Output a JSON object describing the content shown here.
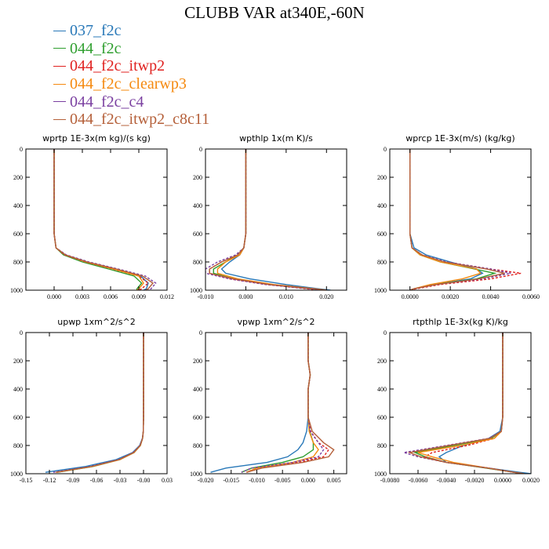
{
  "title": "CLUBB VAR at340E,-60N",
  "legend": {
    "items": [
      {
        "label": "037_f2c",
        "color": "#2878b8"
      },
      {
        "label": "044_f2c",
        "color": "#2e9e2e"
      },
      {
        "label": "044_f2c_itwp2",
        "color": "#e0211f"
      },
      {
        "label": "044_f2c_clearwp3",
        "color": "#f5890e"
      },
      {
        "label": "044_f2c_c4",
        "color": "#7a3fa0"
      },
      {
        "label": "044_f2c_itwp2_c8c11",
        "color": "#b5603a"
      }
    ]
  },
  "chart_data": [
    {
      "type": "line",
      "title": "wprtp  1E-3x(m kg)/(s kg)",
      "xlim": [
        -0.003,
        0.012
      ],
      "ylim": [
        1000,
        0
      ],
      "xticks": [
        0.0,
        0.003,
        0.006,
        0.009,
        0.012
      ],
      "xtick_labels": [
        "0.000",
        "0.003",
        "0.006",
        "0.009",
        "0.012"
      ],
      "yticks": [
        0,
        200,
        400,
        600,
        800,
        1000
      ],
      "y_levels": [
        0,
        200,
        400,
        600,
        700,
        750,
        800,
        850,
        900,
        950,
        990,
        1000
      ],
      "series": [
        {
          "legend": "037_f2c",
          "dashed": false,
          "x": [
            0,
            0,
            0,
            0,
            0.0002,
            0.0012,
            0.0035,
            0.0065,
            0.0092,
            0.01,
            0.0098,
            0.0095
          ]
        },
        {
          "legend": "044_f2c",
          "dashed": false,
          "x": [
            0,
            0,
            0,
            0,
            0.0002,
            0.001,
            0.003,
            0.0058,
            0.0085,
            0.0093,
            0.0088,
            0.0088
          ]
        },
        {
          "legend": "044_f2c_itwp2",
          "dashed": true,
          "x": [
            0,
            0,
            0,
            0,
            0.0002,
            0.0011,
            0.0033,
            0.0062,
            0.009,
            0.01,
            0.0093,
            0.009
          ]
        },
        {
          "legend": "044_f2c_clearwp3",
          "dashed": false,
          "x": [
            0,
            0,
            0,
            0,
            0.0002,
            0.0012,
            0.0034,
            0.0063,
            0.009,
            0.0095,
            0.009,
            0.0088
          ]
        },
        {
          "legend": "044_f2c_c4",
          "dashed": true,
          "x": [
            0,
            0,
            0,
            0,
            0.0002,
            0.0013,
            0.0037,
            0.0068,
            0.0097,
            0.0108,
            0.0103,
            0.01
          ]
        },
        {
          "legend": "044_f2c_itwp2_c8c11",
          "dashed": false,
          "x": [
            0,
            0,
            0,
            0,
            0.0002,
            0.0012,
            0.0035,
            0.0066,
            0.0094,
            0.0105,
            0.01,
            0.0097
          ]
        }
      ]
    },
    {
      "type": "line",
      "title": "wpthlp  1x(m K)/s",
      "xlim": [
        -0.01,
        0.025
      ],
      "ylim": [
        1000,
        0
      ],
      "xticks": [
        -0.01,
        0.0,
        0.01,
        0.02
      ],
      "xtick_labels": [
        "-0.010",
        "0.000",
        "0.010",
        "0.020"
      ],
      "yticks": [
        0,
        200,
        400,
        600,
        800,
        1000
      ],
      "y_levels": [
        0,
        200,
        400,
        600,
        700,
        750,
        800,
        850,
        880,
        920,
        960,
        990,
        1000
      ],
      "series": [
        {
          "legend": "037_f2c",
          "dashed": false,
          "x": [
            0,
            0,
            0,
            0,
            -0.0005,
            -0.0015,
            -0.004,
            -0.006,
            -0.005,
            0.001,
            0.01,
            0.018,
            0.021
          ]
        },
        {
          "legend": "044_f2c",
          "dashed": false,
          "x": [
            0,
            0,
            0,
            0,
            -0.0005,
            -0.002,
            -0.005,
            -0.008,
            -0.008,
            -0.003,
            0.006,
            0.016,
            0.02
          ]
        },
        {
          "legend": "044_f2c_itwp2",
          "dashed": true,
          "x": [
            0,
            0,
            0,
            0,
            -0.0005,
            -0.002,
            -0.006,
            -0.009,
            -0.009,
            -0.004,
            0.005,
            0.015,
            0.019
          ]
        },
        {
          "legend": "044_f2c_clearwp3",
          "dashed": false,
          "x": [
            0,
            0,
            0,
            0,
            -0.0005,
            -0.0015,
            -0.005,
            -0.007,
            -0.007,
            -0.002,
            0.007,
            0.017,
            0.02
          ]
        },
        {
          "legend": "044_f2c_c4",
          "dashed": true,
          "x": [
            0,
            0,
            0,
            0,
            -0.0005,
            -0.0025,
            -0.007,
            -0.01,
            -0.01,
            -0.004,
            0.005,
            0.016,
            0.02
          ]
        },
        {
          "legend": "044_f2c_itwp2_c8c11",
          "dashed": false,
          "x": [
            0,
            0,
            0,
            0,
            -0.0005,
            -0.002,
            -0.006,
            -0.009,
            -0.009,
            -0.003,
            0.006,
            0.017,
            0.02
          ]
        }
      ]
    },
    {
      "type": "line",
      "title": "wprcp  1E-3x(m/s) (kg/kg)",
      "xlim": [
        -0.001,
        0.006
      ],
      "ylim": [
        1000,
        0
      ],
      "xticks": [
        0.0,
        0.002,
        0.004,
        0.006
      ],
      "xtick_labels": [
        "0.0000",
        "0.0020",
        "0.0040",
        "0.0060"
      ],
      "yticks": [
        0,
        200,
        400,
        600,
        800,
        1000
      ],
      "y_levels": [
        0,
        200,
        400,
        600,
        700,
        750,
        800,
        850,
        880,
        920,
        960,
        990,
        1000
      ],
      "series": [
        {
          "legend": "037_f2c",
          "dashed": false,
          "x": [
            0,
            0,
            0,
            0,
            0.0002,
            0.0008,
            0.002,
            0.0033,
            0.0036,
            0.003,
            0.0012,
            0.0002,
            0
          ]
        },
        {
          "legend": "044_f2c",
          "dashed": false,
          "x": [
            0,
            0,
            0,
            0,
            0.0001,
            0.0005,
            0.0015,
            0.0032,
            0.0042,
            0.0033,
            0.0012,
            0.0002,
            0
          ]
        },
        {
          "legend": "044_f2c_itwp2",
          "dashed": true,
          "x": [
            0,
            0,
            0,
            0,
            0.0001,
            0.0006,
            0.0018,
            0.004,
            0.0055,
            0.004,
            0.0015,
            0.0003,
            0
          ]
        },
        {
          "legend": "044_f2c_clearwp3",
          "dashed": false,
          "x": [
            0,
            0,
            0,
            0,
            0.0001,
            0.0005,
            0.0015,
            0.0033,
            0.0035,
            0.0026,
            0.001,
            0.0002,
            0
          ]
        },
        {
          "legend": "044_f2c_c4",
          "dashed": true,
          "x": [
            0,
            0,
            0,
            0,
            0.0001,
            0.0006,
            0.0018,
            0.004,
            0.005,
            0.0036,
            0.0013,
            0.0002,
            0
          ]
        },
        {
          "legend": "044_f2c_itwp2_c8c11",
          "dashed": false,
          "x": [
            0,
            0,
            0,
            0,
            0.0001,
            0.0006,
            0.0017,
            0.0038,
            0.0047,
            0.0034,
            0.0013,
            0.0002,
            0
          ]
        }
      ]
    },
    {
      "type": "line",
      "title": "upwp  1xm^2/s^2",
      "xlim": [
        -0.15,
        0.03
      ],
      "ylim": [
        1000,
        0
      ],
      "xticks": [
        -0.15,
        -0.12,
        -0.09,
        -0.06,
        -0.03,
        0.0,
        0.03
      ],
      "xtick_labels": [
        "-0.15",
        "-0.12",
        "-0.09",
        "-0.06",
        "-0.03",
        "-0.00",
        "0.03"
      ],
      "yticks": [
        0,
        200,
        400,
        600,
        800,
        1000
      ],
      "y_levels": [
        0,
        200,
        400,
        600,
        700,
        750,
        800,
        850,
        900,
        950,
        990
      ],
      "series": [
        {
          "legend": "037_f2c",
          "dashed": false,
          "x": [
            0,
            0,
            0,
            0,
            -0.0003,
            -0.0015,
            -0.005,
            -0.014,
            -0.035,
            -0.075,
            -0.125
          ]
        },
        {
          "legend": "044_f2c",
          "dashed": false,
          "x": [
            0,
            0,
            0,
            0,
            -0.0003,
            -0.0012,
            -0.004,
            -0.012,
            -0.03,
            -0.065,
            -0.11
          ]
        },
        {
          "legend": "044_f2c_itwp2",
          "dashed": true,
          "x": [
            0,
            0,
            0,
            0,
            -0.0003,
            -0.0012,
            -0.0045,
            -0.013,
            -0.031,
            -0.067,
            -0.112
          ]
        },
        {
          "legend": "044_f2c_clearwp3",
          "dashed": false,
          "x": [
            0,
            0,
            0,
            0,
            -0.0003,
            -0.0012,
            -0.004,
            -0.012,
            -0.03,
            -0.066,
            -0.111
          ]
        },
        {
          "legend": "044_f2c_c4",
          "dashed": true,
          "x": [
            0,
            0,
            0,
            0,
            -0.0003,
            -0.0013,
            -0.0045,
            -0.013,
            -0.032,
            -0.069,
            -0.115
          ]
        },
        {
          "legend": "044_f2c_itwp2_c8c11",
          "dashed": false,
          "x": [
            0,
            0,
            0,
            0,
            -0.0003,
            -0.0012,
            -0.0042,
            -0.0125,
            -0.031,
            -0.067,
            -0.112
          ]
        }
      ]
    },
    {
      "type": "line",
      "title": "vpwp  1xm^2/s^2",
      "xlim": [
        -0.02,
        0.0075
      ],
      "ylim": [
        1000,
        0
      ],
      "xticks": [
        -0.02,
        -0.015,
        -0.01,
        -0.005,
        0.0,
        0.005
      ],
      "xtick_labels": [
        "-0.020",
        "-0.015",
        "-0.010",
        "-0.005",
        "0.000",
        "0.005"
      ],
      "yticks": [
        0,
        200,
        400,
        600,
        800,
        1000
      ],
      "y_levels": [
        0,
        200,
        250,
        300,
        350,
        400,
        600,
        700,
        780,
        830,
        880,
        920,
        960,
        990
      ],
      "series": [
        {
          "legend": "037_f2c",
          "dashed": false,
          "x": [
            0,
            0,
            0.0002,
            0.0004,
            0.0002,
            0,
            0,
            -0.0003,
            -0.001,
            -0.002,
            -0.004,
            -0.008,
            -0.016,
            -0.019
          ]
        },
        {
          "legend": "044_f2c",
          "dashed": false,
          "x": [
            0,
            0,
            0.0002,
            0.0004,
            0.0002,
            0,
            0,
            0.0003,
            0.001,
            0.001,
            -0.001,
            -0.005,
            -0.011,
            -0.013
          ]
        },
        {
          "legend": "044_f2c_itwp2",
          "dashed": true,
          "x": [
            0,
            0,
            0.0002,
            0.0004,
            0.0002,
            0,
            0,
            0.0005,
            0.002,
            0.004,
            0.003,
            -0.002,
            -0.01,
            -0.012
          ]
        },
        {
          "legend": "044_f2c_clearwp3",
          "dashed": false,
          "x": [
            0,
            0,
            0.0002,
            0.0004,
            0.0002,
            0,
            0,
            0.0002,
            0.001,
            0.002,
            0.001,
            -0.003,
            -0.01,
            -0.012
          ]
        },
        {
          "legend": "044_f2c_c4",
          "dashed": true,
          "x": [
            0,
            0,
            0.0002,
            0.0004,
            0.0002,
            0,
            0,
            0.0004,
            0.002,
            0.003,
            0.002,
            -0.003,
            -0.011,
            -0.013
          ]
        },
        {
          "legend": "044_f2c_itwp2_c8c11",
          "dashed": false,
          "x": [
            0,
            0,
            0.0002,
            0.0004,
            0.0002,
            0,
            0,
            0.0008,
            0.003,
            0.005,
            0.004,
            -0.001,
            -0.009,
            -0.012
          ]
        }
      ]
    },
    {
      "type": "line",
      "title": "rtpthlp  1E-3x(kg K)/kg",
      "xlim": [
        -0.008,
        0.002
      ],
      "ylim": [
        1000,
        0
      ],
      "xticks": [
        -0.008,
        -0.006,
        -0.004,
        -0.002,
        0.0,
        0.002
      ],
      "xtick_labels": [
        "-0.0080",
        "-0.0060",
        "-0.0040",
        "-0.0020",
        "0.0000",
        "0.0020"
      ],
      "yticks": [
        0,
        200,
        400,
        600,
        800,
        1000
      ],
      "y_levels": [
        0,
        200,
        400,
        600,
        700,
        750,
        800,
        850,
        880,
        920,
        960,
        990,
        1000
      ],
      "series": [
        {
          "legend": "037_f2c",
          "dashed": false,
          "x": [
            0,
            0,
            0,
            0,
            -0.0002,
            -0.001,
            -0.0028,
            -0.004,
            -0.0045,
            -0.004,
            -0.001,
            0.0012,
            0.002
          ]
        },
        {
          "legend": "044_f2c",
          "dashed": false,
          "x": [
            0,
            0,
            0,
            0,
            -0.0001,
            -0.0008,
            -0.0035,
            -0.0062,
            -0.0055,
            -0.004,
            -0.0012,
            0.0008,
            0.0015
          ]
        },
        {
          "legend": "044_f2c_itwp2",
          "dashed": true,
          "x": [
            0,
            0,
            0,
            0,
            -0.0001,
            -0.0006,
            -0.0025,
            -0.005,
            -0.0055,
            -0.004,
            -0.001,
            0.0008,
            0.0015
          ]
        },
        {
          "legend": "044_f2c_clearwp3",
          "dashed": false,
          "x": [
            0,
            0,
            0,
            0,
            -0.0001,
            -0.0006,
            -0.003,
            -0.006,
            -0.005,
            -0.0035,
            -0.001,
            0.0008,
            0.0015
          ]
        },
        {
          "legend": "044_f2c_c4",
          "dashed": true,
          "x": [
            0,
            0,
            0,
            0,
            -0.0001,
            -0.001,
            -0.004,
            -0.007,
            -0.006,
            -0.004,
            -0.001,
            0.0008,
            0.0015
          ]
        },
        {
          "legend": "044_f2c_itwp2_c8c11",
          "dashed": false,
          "x": [
            0,
            0,
            0,
            0,
            -0.0001,
            -0.0009,
            -0.0038,
            -0.0066,
            -0.0058,
            -0.004,
            -0.0011,
            0.0008,
            0.0015
          ]
        }
      ]
    }
  ]
}
